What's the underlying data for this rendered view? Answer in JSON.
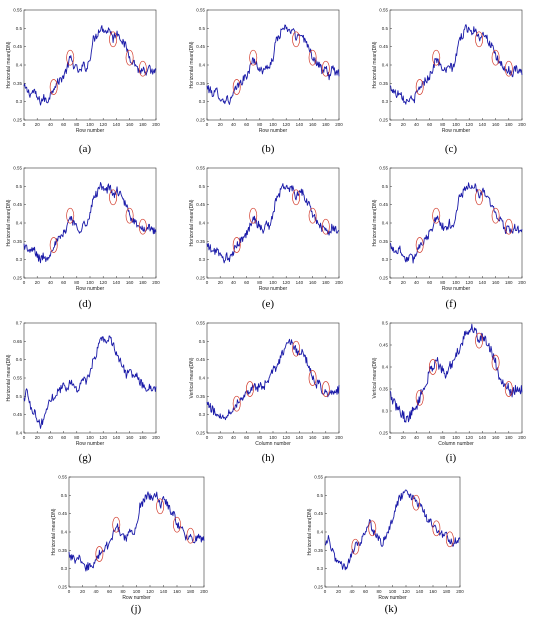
{
  "figure": {
    "panels": [
      {
        "id": "a",
        "label": "(a)"
      },
      {
        "id": "b",
        "label": "(b)"
      },
      {
        "id": "c",
        "label": "(c)"
      },
      {
        "id": "d",
        "label": "(d)"
      },
      {
        "id": "e",
        "label": "(e)"
      },
      {
        "id": "f",
        "label": "(f)"
      },
      {
        "id": "g",
        "label": "(g)"
      },
      {
        "id": "h",
        "label": "(h)"
      },
      {
        "id": "i",
        "label": "(i)"
      },
      {
        "id": "j",
        "label": "(j)"
      },
      {
        "id": "k",
        "label": "(k)"
      }
    ],
    "series_color": "#1a1aa8",
    "ellipse_color": "#d23a2a"
  },
  "chart_data": [
    {
      "id": "a",
      "type": "line",
      "xlabel": "Row number",
      "ylabel": "Horizontal mean(DN)",
      "xlim": [
        0,
        200
      ],
      "ylim": [
        0.25,
        0.55
      ],
      "xticks": [
        0,
        20,
        40,
        60,
        80,
        100,
        120,
        140,
        160,
        180,
        200
      ],
      "yticks": [
        "0.25",
        "0.3",
        "0.35",
        "0.4",
        "0.45",
        "0.5",
        "0.55"
      ],
      "ytick_values": [
        0.25,
        0.3,
        0.35,
        0.4,
        0.45,
        0.5,
        0.55
      ],
      "profile": "H1",
      "highlights": [
        45,
        70,
        135,
        160,
        180
      ]
    },
    {
      "id": "b",
      "type": "line",
      "xlabel": "Row number",
      "ylabel": "Horizontal mean(DN)",
      "xlim": [
        0,
        200
      ],
      "ylim": [
        0.25,
        0.55
      ],
      "xticks": [
        0,
        20,
        40,
        60,
        80,
        100,
        120,
        140,
        160,
        180,
        200
      ],
      "yticks": [
        "0.25",
        "0.3",
        "0.35",
        "0.4",
        "0.45",
        "0.5",
        "0.55"
      ],
      "ytick_values": [
        0.25,
        0.3,
        0.35,
        0.4,
        0.45,
        0.5,
        0.55
      ],
      "profile": "H1",
      "highlights": [
        45,
        70,
        135,
        160,
        180
      ]
    },
    {
      "id": "c",
      "type": "line",
      "xlabel": "Row number",
      "ylabel": "Horizontal mean(DN)",
      "xlim": [
        0,
        200
      ],
      "ylim": [
        0.25,
        0.55
      ],
      "xticks": [
        0,
        20,
        40,
        60,
        80,
        100,
        120,
        140,
        160,
        180,
        200
      ],
      "yticks": [
        "0.25",
        "0.3",
        "0.35",
        "0.4",
        "0.45",
        "0.5",
        "0.55"
      ],
      "ytick_values": [
        0.25,
        0.3,
        0.35,
        0.4,
        0.45,
        0.5,
        0.55
      ],
      "profile": "H1",
      "highlights": [
        45,
        70,
        135,
        160,
        180
      ]
    },
    {
      "id": "d",
      "type": "line",
      "xlabel": "Row number",
      "ylabel": "Horizontal mean(DN)",
      "xlim": [
        0,
        200
      ],
      "ylim": [
        0.25,
        0.55
      ],
      "xticks": [
        0,
        20,
        40,
        60,
        80,
        100,
        120,
        140,
        160,
        180,
        200
      ],
      "yticks": [
        "0.25",
        "0.3",
        "0.35",
        "0.4",
        "0.45",
        "0.5",
        "0.55"
      ],
      "ytick_values": [
        0.25,
        0.3,
        0.35,
        0.4,
        0.45,
        0.5,
        0.55
      ],
      "profile": "H1",
      "highlights": [
        45,
        70,
        135,
        160,
        180
      ]
    },
    {
      "id": "e",
      "type": "line",
      "xlabel": "Row number",
      "ylabel": "Horizontal mean(DN)",
      "xlim": [
        0,
        200
      ],
      "ylim": [
        0.25,
        0.55
      ],
      "xticks": [
        0,
        20,
        40,
        60,
        80,
        100,
        120,
        140,
        160,
        180,
        200
      ],
      "yticks": [
        "0.25",
        "0.3",
        "0.35",
        "0.4",
        "0.45",
        "0.5",
        "0.55"
      ],
      "ytick_values": [
        0.25,
        0.3,
        0.35,
        0.4,
        0.45,
        0.5,
        0.55
      ],
      "profile": "H1",
      "highlights": [
        45,
        70,
        135,
        160,
        180
      ]
    },
    {
      "id": "f",
      "type": "line",
      "xlabel": "Row number",
      "ylabel": "Horizontal mean(DN)",
      "xlim": [
        0,
        200
      ],
      "ylim": [
        0.25,
        0.55
      ],
      "xticks": [
        0,
        20,
        40,
        60,
        80,
        100,
        120,
        140,
        160,
        180,
        200
      ],
      "yticks": [
        "0.25",
        "0.3",
        "0.35",
        "0.4",
        "0.45",
        "0.5",
        "0.55"
      ],
      "ytick_values": [
        0.25,
        0.3,
        0.35,
        0.4,
        0.45,
        0.5,
        0.55
      ],
      "profile": "H1",
      "highlights": [
        45,
        70,
        135,
        160,
        180
      ]
    },
    {
      "id": "g",
      "type": "line",
      "xlabel": "Row number",
      "ylabel": "Horizontal mean(DN)",
      "xlim": [
        0,
        200
      ],
      "ylim": [
        0.4,
        0.7
      ],
      "xticks": [
        0,
        20,
        40,
        60,
        80,
        100,
        120,
        140,
        160,
        180,
        200
      ],
      "yticks": [
        "0.4",
        "0.45",
        "0.5",
        "0.55",
        "0.6",
        "0.65",
        "0.7"
      ],
      "ytick_values": [
        0.4,
        0.45,
        0.5,
        0.55,
        0.6,
        0.65,
        0.7
      ],
      "profile": "G",
      "highlights": []
    },
    {
      "id": "h",
      "type": "line",
      "xlabel": "Column number",
      "ylabel": "Vertical mean(DN)",
      "xlim": [
        0,
        200
      ],
      "ylim": [
        0.25,
        0.55
      ],
      "xticks": [
        0,
        20,
        40,
        60,
        80,
        100,
        120,
        140,
        160,
        180,
        200
      ],
      "yticks": [
        "0.25",
        "0.3",
        "0.35",
        "0.4",
        "0.45",
        "0.5",
        "0.55"
      ],
      "ytick_values": [
        0.25,
        0.3,
        0.35,
        0.4,
        0.45,
        0.5,
        0.55
      ],
      "profile": "V1",
      "highlights": [
        45,
        65,
        135,
        160,
        180
      ]
    },
    {
      "id": "i",
      "type": "line",
      "xlabel": "Column number",
      "ylabel": "Vertical mean(DN)",
      "xlim": [
        0,
        200
      ],
      "ylim": [
        0.25,
        0.5
      ],
      "xticks": [
        0,
        20,
        40,
        60,
        80,
        100,
        120,
        140,
        160,
        180,
        200
      ],
      "yticks": [
        "0.25",
        "0.3",
        "0.35",
        "0.4",
        "0.45",
        "0.5"
      ],
      "ytick_values": [
        0.25,
        0.3,
        0.35,
        0.4,
        0.45,
        0.5
      ],
      "profile": "V2",
      "highlights": [
        45,
        65,
        135,
        160,
        180
      ]
    },
    {
      "id": "j",
      "type": "line",
      "xlabel": "Row number",
      "ylabel": "Horizontal mean(DN)",
      "xlim": [
        0,
        200
      ],
      "ylim": [
        0.25,
        0.55
      ],
      "xticks": [
        0,
        20,
        40,
        60,
        80,
        100,
        120,
        140,
        160,
        180,
        200
      ],
      "yticks": [
        "0.25",
        "0.3",
        "0.35",
        "0.4",
        "0.45",
        "0.5",
        "0.55"
      ],
      "ytick_values": [
        0.25,
        0.3,
        0.35,
        0.4,
        0.45,
        0.5,
        0.55
      ],
      "profile": "H1",
      "highlights": [
        45,
        70,
        135,
        160,
        180
      ]
    },
    {
      "id": "k",
      "type": "line",
      "xlabel": "Row number",
      "ylabel": "Horizontal mean(DN)",
      "xlim": [
        0,
        200
      ],
      "ylim": [
        0.25,
        0.55
      ],
      "xticks": [
        0,
        20,
        40,
        60,
        80,
        100,
        120,
        140,
        160,
        180,
        200
      ],
      "yticks": [
        "0.25",
        "0.3",
        "0.35",
        "0.4",
        "0.45",
        "0.5",
        "0.55"
      ],
      "ytick_values": [
        0.25,
        0.3,
        0.35,
        0.4,
        0.45,
        0.5,
        0.55
      ],
      "profile": "K",
      "highlights": [
        45,
        70,
        135,
        165,
        185
      ]
    }
  ],
  "profiles": {
    "H1": {
      "x": [
        0,
        5,
        10,
        15,
        20,
        25,
        30,
        35,
        40,
        45,
        50,
        55,
        60,
        65,
        70,
        75,
        80,
        85,
        90,
        95,
        100,
        105,
        110,
        115,
        120,
        125,
        130,
        135,
        140,
        145,
        150,
        155,
        160,
        165,
        170,
        175,
        180,
        185,
        190,
        195,
        200
      ],
      "y": [
        0.34,
        0.33,
        0.32,
        0.33,
        0.31,
        0.3,
        0.31,
        0.3,
        0.32,
        0.34,
        0.35,
        0.36,
        0.37,
        0.39,
        0.42,
        0.4,
        0.39,
        0.38,
        0.4,
        0.39,
        0.42,
        0.47,
        0.48,
        0.5,
        0.5,
        0.49,
        0.5,
        0.47,
        0.49,
        0.48,
        0.46,
        0.45,
        0.42,
        0.41,
        0.4,
        0.38,
        0.39,
        0.37,
        0.39,
        0.38,
        0.38
      ]
    },
    "G": {
      "x": [
        0,
        5,
        10,
        15,
        20,
        25,
        30,
        35,
        40,
        45,
        50,
        55,
        60,
        65,
        70,
        75,
        80,
        85,
        90,
        95,
        100,
        105,
        110,
        115,
        120,
        125,
        130,
        135,
        140,
        145,
        150,
        155,
        160,
        165,
        170,
        175,
        180,
        185,
        190,
        195,
        200
      ],
      "y": [
        0.49,
        0.52,
        0.47,
        0.46,
        0.44,
        0.42,
        0.44,
        0.47,
        0.49,
        0.5,
        0.51,
        0.52,
        0.53,
        0.52,
        0.54,
        0.53,
        0.52,
        0.53,
        0.55,
        0.54,
        0.56,
        0.6,
        0.62,
        0.65,
        0.66,
        0.65,
        0.66,
        0.64,
        0.62,
        0.6,
        0.58,
        0.56,
        0.57,
        0.55,
        0.56,
        0.54,
        0.53,
        0.52,
        0.53,
        0.52,
        0.52
      ]
    },
    "V1": {
      "x": [
        0,
        5,
        10,
        15,
        20,
        25,
        30,
        35,
        40,
        45,
        50,
        55,
        60,
        65,
        70,
        75,
        80,
        85,
        90,
        95,
        100,
        105,
        110,
        115,
        120,
        125,
        130,
        135,
        140,
        145,
        150,
        155,
        160,
        165,
        170,
        175,
        180,
        185,
        190,
        195,
        200
      ],
      "y": [
        0.33,
        0.32,
        0.31,
        0.3,
        0.3,
        0.29,
        0.3,
        0.31,
        0.32,
        0.33,
        0.34,
        0.35,
        0.36,
        0.37,
        0.38,
        0.37,
        0.38,
        0.37,
        0.39,
        0.4,
        0.42,
        0.43,
        0.45,
        0.47,
        0.49,
        0.5,
        0.49,
        0.48,
        0.46,
        0.47,
        0.45,
        0.43,
        0.4,
        0.38,
        0.39,
        0.36,
        0.37,
        0.35,
        0.37,
        0.36,
        0.37
      ]
    },
    "V2": {
      "x": [
        0,
        5,
        10,
        15,
        20,
        25,
        30,
        35,
        40,
        45,
        50,
        55,
        60,
        65,
        70,
        75,
        80,
        85,
        90,
        95,
        100,
        105,
        110,
        115,
        120,
        125,
        130,
        135,
        140,
        145,
        150,
        155,
        160,
        165,
        170,
        175,
        180,
        185,
        190,
        195,
        200
      ],
      "y": [
        0.34,
        0.32,
        0.31,
        0.3,
        0.29,
        0.28,
        0.29,
        0.3,
        0.31,
        0.33,
        0.35,
        0.36,
        0.39,
        0.4,
        0.42,
        0.4,
        0.39,
        0.38,
        0.4,
        0.41,
        0.43,
        0.44,
        0.46,
        0.48,
        0.48,
        0.49,
        0.48,
        0.46,
        0.47,
        0.46,
        0.45,
        0.43,
        0.41,
        0.38,
        0.37,
        0.36,
        0.35,
        0.34,
        0.35,
        0.34,
        0.35
      ]
    },
    "K": {
      "x": [
        0,
        5,
        10,
        15,
        20,
        25,
        30,
        35,
        40,
        45,
        50,
        55,
        60,
        65,
        70,
        75,
        80,
        85,
        90,
        95,
        100,
        105,
        110,
        115,
        120,
        125,
        130,
        135,
        140,
        145,
        150,
        155,
        160,
        165,
        170,
        175,
        180,
        185,
        190,
        195,
        200
      ],
      "y": [
        0.36,
        0.38,
        0.35,
        0.33,
        0.32,
        0.31,
        0.3,
        0.32,
        0.34,
        0.36,
        0.37,
        0.38,
        0.4,
        0.43,
        0.41,
        0.39,
        0.38,
        0.37,
        0.39,
        0.41,
        0.43,
        0.47,
        0.49,
        0.5,
        0.51,
        0.5,
        0.49,
        0.48,
        0.47,
        0.46,
        0.44,
        0.43,
        0.42,
        0.41,
        0.4,
        0.39,
        0.39,
        0.38,
        0.37,
        0.38,
        0.38
      ]
    }
  }
}
